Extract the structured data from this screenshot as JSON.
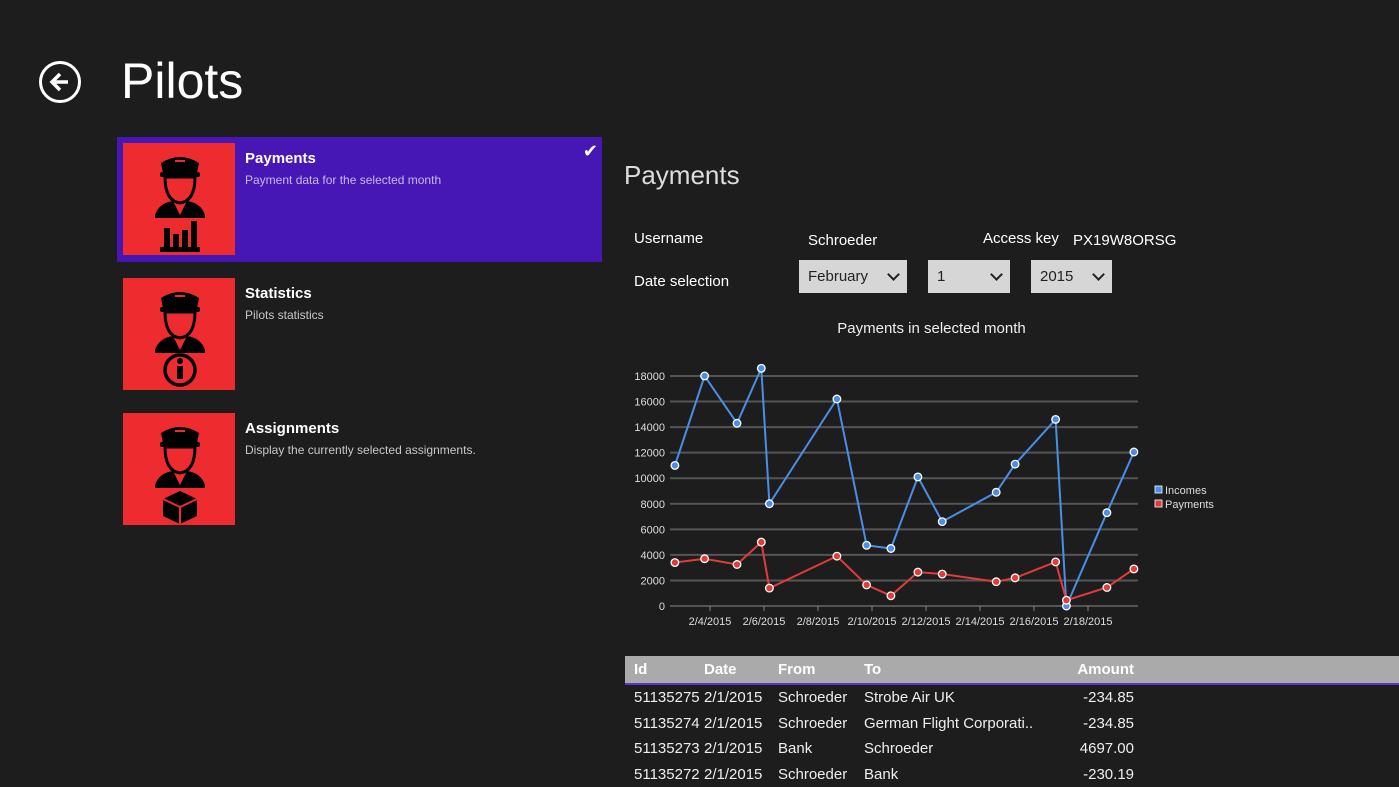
{
  "header": {
    "title": "Pilots",
    "back_icon": "arrow-left-icon"
  },
  "nav": [
    {
      "title": "Payments",
      "subtitle": "Payment data for the selected month",
      "icon": "pilot-chart-icon",
      "selected": true
    },
    {
      "title": "Statistics",
      "subtitle": "Pilots statistics",
      "icon": "pilot-info-icon",
      "selected": false
    },
    {
      "title": "Assignments",
      "subtitle": "Display the currently selected assignments.",
      "icon": "pilot-box-icon",
      "selected": false
    }
  ],
  "section": {
    "title": "Payments",
    "username_label": "Username",
    "username": "Schroeder",
    "access_key_label": "Access key",
    "access_key": "PX19W8ORSG",
    "date_label": "Date selection",
    "month": "February",
    "day": "1",
    "year": "2015"
  },
  "chart_data": {
    "type": "line",
    "title": "Payments in selected month",
    "x": [
      2.7,
      3.8,
      5.0,
      5.9,
      6.2,
      8.7,
      9.8,
      10.7,
      11.7,
      12.6,
      14.6,
      15.3,
      16.8,
      17.2,
      18.7,
      19.7
    ],
    "xticks": [
      4,
      6,
      8,
      10,
      12,
      14,
      16,
      18
    ],
    "xtick_labels": [
      "2/4/2015",
      "2/6/2015",
      "2/8/2015",
      "2/10/2015",
      "2/12/2015",
      "2/14/2015",
      "2/16/2015",
      "2/18/2015"
    ],
    "yticks": [
      0,
      2000,
      4000,
      6000,
      8000,
      10000,
      12000,
      14000,
      16000,
      18000
    ],
    "ylim": [
      0,
      18000
    ],
    "grid": true,
    "legend": "right",
    "series": [
      {
        "name": "Incomes",
        "color": "#4a8ee6",
        "values": [
          11000,
          18000,
          14300,
          18600,
          8000,
          16200,
          4750,
          4500,
          10100,
          6600,
          8900,
          11100,
          14600,
          0,
          7300,
          12050
        ]
      },
      {
        "name": "Payments",
        "color": "#e23b3b",
        "values": [
          3400,
          3700,
          3250,
          5000,
          1400,
          3900,
          1650,
          800,
          2650,
          2500,
          1900,
          2200,
          3450,
          450,
          1450,
          2900
        ]
      }
    ]
  },
  "table": {
    "headers": [
      "Id",
      "Date",
      "From",
      "To",
      "Amount"
    ],
    "rows": [
      [
        "51135275",
        "2/1/2015",
        "Schroeder",
        "Strobe Air UK",
        "-234.85"
      ],
      [
        "51135274",
        "2/1/2015",
        "Schroeder",
        "German Flight Corporati..",
        "-234.85"
      ],
      [
        "51135273",
        "2/1/2015",
        "Bank",
        "Schroeder",
        "4697.00"
      ],
      [
        "51135272",
        "2/1/2015",
        "Schroeder",
        "Bank",
        "-230.19"
      ]
    ]
  }
}
